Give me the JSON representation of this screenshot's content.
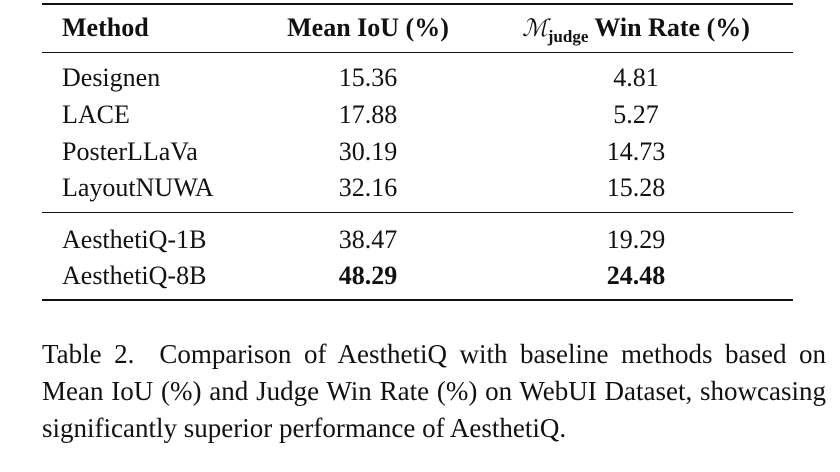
{
  "table": {
    "header": [
      "Method",
      "Mean IoU (%)",
      {
        "symbol": "ℳ",
        "subscript": "judge",
        "text": "Win Rate (%)"
      }
    ],
    "groups": [
      [
        [
          "Designen",
          "15.36",
          "4.81"
        ],
        [
          "LACE",
          "17.88",
          "5.27"
        ],
        [
          "PosterLLaVa",
          "30.19",
          "14.73"
        ],
        [
          "LayoutNUWA",
          "32.16",
          "15.28"
        ]
      ],
      [
        [
          "AesthetiQ-1B",
          "38.47",
          "19.29"
        ],
        [
          "AesthetiQ-8B",
          "48.29",
          "24.48"
        ]
      ]
    ]
  },
  "caption": {
    "label": "Table 2.",
    "text": "Comparison of AesthetiQ with baseline methods based on Mean IoU (%) and Judge Win Rate (%) on WebUI Dataset, showcasing significantly superior performance of AesthetiQ."
  }
}
